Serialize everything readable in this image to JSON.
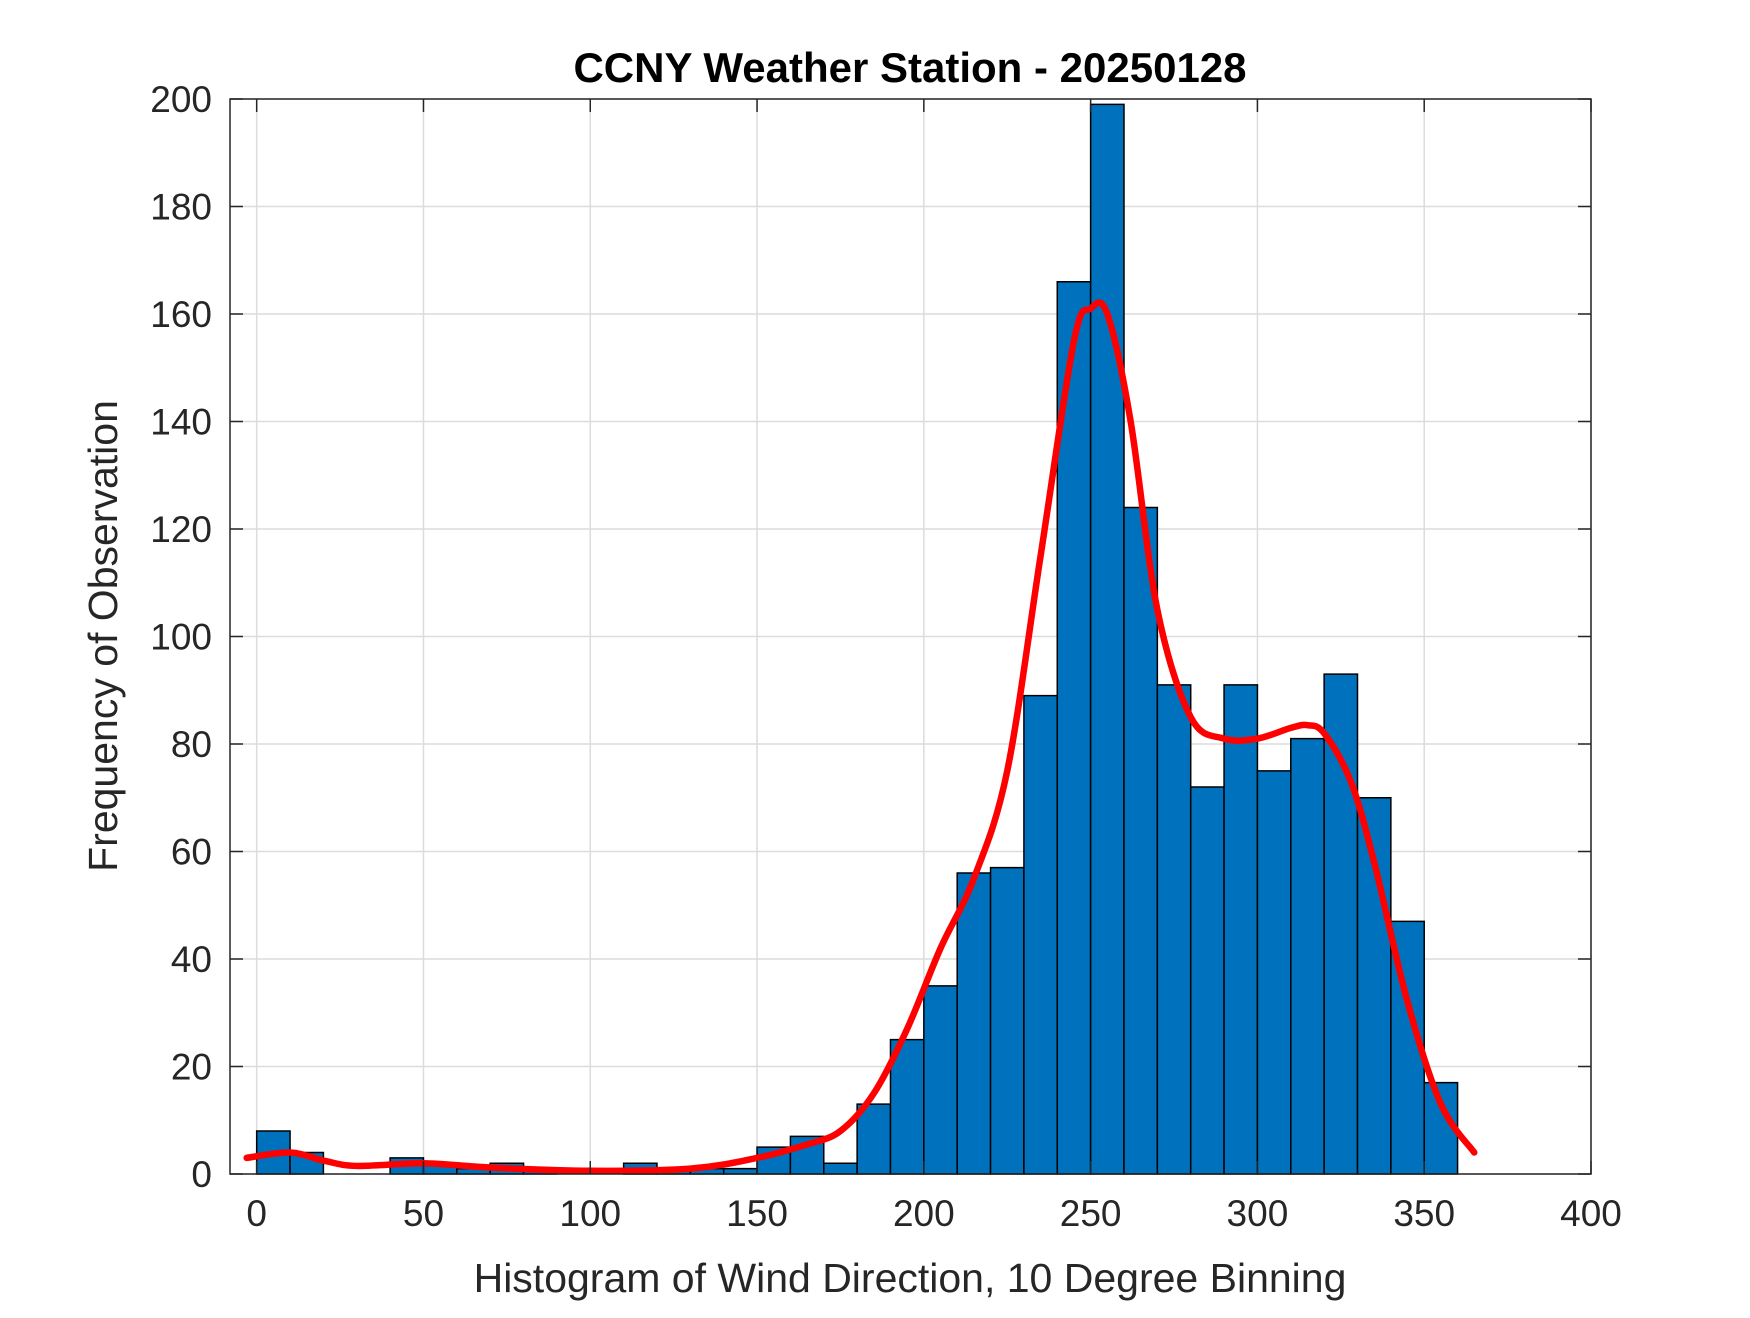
{
  "chart_data": {
    "type": "bar",
    "title": "CCNY Weather Station - 20250128",
    "xlabel": "Histogram of Wind Direction, 10 Degree Binning",
    "ylabel": "Frequency of Observation",
    "xlim": [
      -8,
      400
    ],
    "ylim": [
      0,
      200
    ],
    "xticks": [
      0,
      50,
      100,
      150,
      200,
      250,
      300,
      350,
      400
    ],
    "yticks": [
      0,
      20,
      40,
      60,
      80,
      100,
      120,
      140,
      160,
      180,
      200
    ],
    "grid": true,
    "bin_width": 10,
    "bins": [
      {
        "start": 0,
        "value": 8
      },
      {
        "start": 10,
        "value": 4
      },
      {
        "start": 20,
        "value": 0
      },
      {
        "start": 30,
        "value": 0
      },
      {
        "start": 40,
        "value": 3
      },
      {
        "start": 50,
        "value": 2
      },
      {
        "start": 60,
        "value": 1
      },
      {
        "start": 70,
        "value": 2
      },
      {
        "start": 80,
        "value": 1
      },
      {
        "start": 90,
        "value": 0
      },
      {
        "start": 100,
        "value": 0
      },
      {
        "start": 110,
        "value": 2
      },
      {
        "start": 120,
        "value": 1
      },
      {
        "start": 130,
        "value": 1
      },
      {
        "start": 140,
        "value": 1
      },
      {
        "start": 150,
        "value": 5
      },
      {
        "start": 160,
        "value": 7
      },
      {
        "start": 170,
        "value": 2
      },
      {
        "start": 180,
        "value": 13
      },
      {
        "start": 190,
        "value": 25
      },
      {
        "start": 200,
        "value": 35
      },
      {
        "start": 210,
        "value": 56
      },
      {
        "start": 220,
        "value": 57
      },
      {
        "start": 230,
        "value": 89
      },
      {
        "start": 240,
        "value": 166
      },
      {
        "start": 250,
        "value": 199
      },
      {
        "start": 260,
        "value": 124
      },
      {
        "start": 270,
        "value": 91
      },
      {
        "start": 280,
        "value": 72
      },
      {
        "start": 290,
        "value": 91
      },
      {
        "start": 300,
        "value": 75
      },
      {
        "start": 310,
        "value": 81
      },
      {
        "start": 320,
        "value": 93
      },
      {
        "start": 330,
        "value": 70
      },
      {
        "start": 340,
        "value": 47
      },
      {
        "start": 350,
        "value": 17
      }
    ],
    "fit_curve": {
      "points": [
        [
          -3,
          3
        ],
        [
          10,
          4
        ],
        [
          20,
          2.5
        ],
        [
          30,
          1.5
        ],
        [
          50,
          2
        ],
        [
          70,
          1.2
        ],
        [
          100,
          0.6
        ],
        [
          130,
          1
        ],
        [
          150,
          3
        ],
        [
          165,
          5.5
        ],
        [
          175,
          8
        ],
        [
          185,
          15
        ],
        [
          195,
          27
        ],
        [
          205,
          42
        ],
        [
          215,
          55
        ],
        [
          225,
          75
        ],
        [
          235,
          115
        ],
        [
          245,
          155
        ],
        [
          250,
          161
        ],
        [
          255,
          160
        ],
        [
          262,
          140
        ],
        [
          270,
          105
        ],
        [
          280,
          85
        ],
        [
          290,
          81
        ],
        [
          300,
          81
        ],
        [
          310,
          83
        ],
        [
          315,
          83.5
        ],
        [
          320,
          82
        ],
        [
          328,
          73
        ],
        [
          335,
          58
        ],
        [
          345,
          32
        ],
        [
          355,
          13
        ],
        [
          365,
          4
        ]
      ]
    },
    "colors": {
      "bar_fill": "#0072bd",
      "bar_edge": "#000000",
      "curve": "#ff0000",
      "grid": "#dcdcdc",
      "axis": "#262626"
    }
  }
}
